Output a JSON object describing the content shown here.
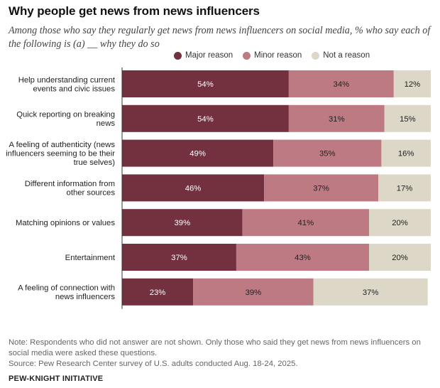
{
  "title": "Why people get news from news influencers",
  "subtitle": "Among those who say they regularly get news from news influencers on social media, % who say each of the following is (a) __ why they do so",
  "colors": {
    "major": "#73303f",
    "minor": "#bd7a83",
    "none": "#dcd7c6",
    "axis": "#333333"
  },
  "chart_data": {
    "type": "bar",
    "orientation": "horizontal",
    "stacked": true,
    "legend_position": "top",
    "categories": [
      [
        "Help understanding current",
        "events and civic issues"
      ],
      [
        "Quick reporting on breaking",
        "news"
      ],
      [
        "A feeling of authenticity (news",
        "influencers seeming to be their",
        "true selves)"
      ],
      [
        "Different information from",
        "other sources"
      ],
      [
        "Matching opinions or values"
      ],
      [
        "Entertainment"
      ],
      [
        "A feeling of connection with",
        "news influencers"
      ]
    ],
    "series": [
      {
        "name": "Major reason",
        "color_key": "major",
        "values": [
          54,
          54,
          49,
          46,
          39,
          37,
          23
        ]
      },
      {
        "name": "Minor reason",
        "color_key": "minor",
        "values": [
          34,
          31,
          35,
          37,
          41,
          43,
          39
        ]
      },
      {
        "name": "Not a reason",
        "color_key": "none",
        "values": [
          12,
          15,
          16,
          17,
          20,
          20,
          37
        ]
      }
    ],
    "value_suffix": "%"
  },
  "notes": {
    "note": "Note: Respondents who did not answer are not shown. Only those who said they get news from news influencers on social media were asked these questions.",
    "source": "Source: Pew Research Center survey of U.S. adults conducted Aug. 18-24, 2025."
  },
  "brand": "PEW-KNIGHT INITIATIVE"
}
